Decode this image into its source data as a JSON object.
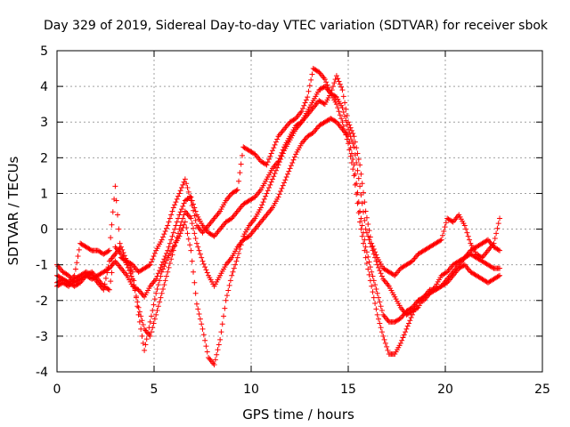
{
  "chart_data": {
    "type": "scatter",
    "title": "Day 329 of 2019, Sidereal Day-to-day VTEC variation (SDTVAR) for receiver sbok",
    "xlabel": "GPS time / hours",
    "ylabel": "SDTVAR / TECUs",
    "xlim": [
      0,
      25
    ],
    "ylim": [
      -4,
      5
    ],
    "xticks": [
      0,
      5,
      10,
      15,
      20,
      25
    ],
    "yticks": [
      -4,
      -3,
      -2,
      -1,
      0,
      1,
      2,
      3,
      4,
      5
    ],
    "grid": true,
    "marker": "+",
    "color": "#ff0000",
    "series": [
      {
        "x": [
          0,
          0.3,
          0.6,
          0.9,
          1.2,
          1.5,
          1.8,
          2.1,
          2.4,
          2.7,
          3.0,
          3.3,
          3.6,
          3.9,
          4.2,
          4.5,
          4.8,
          5.1,
          5.4,
          5.7,
          6.0,
          6.3,
          6.6,
          6.9,
          7.2,
          7.5,
          7.8,
          8.1,
          8.4,
          8.7,
          9.0,
          9.3,
          9.6,
          9.9,
          10.2,
          10.5,
          10.8,
          11.1,
          11.4,
          11.7,
          12.0,
          12.3,
          12.6,
          12.9,
          13.2,
          13.5,
          13.8,
          14.1,
          14.4,
          14.7,
          15.0,
          15.3,
          15.6,
          15.9,
          16.2,
          16.5,
          16.8,
          17.1,
          17.4,
          17.7,
          18.0,
          18.3,
          18.6,
          18.9,
          19.2,
          19.5,
          19.8,
          20.1,
          20.4,
          20.7,
          21.0,
          21.3,
          21.6,
          21.9,
          22.2,
          22.5,
          22.8
        ],
        "y": [
          -1.0,
          -1.2,
          -1.3,
          -1.5,
          -1.4,
          -1.3,
          -1.4,
          -1.3,
          -1.2,
          -1.1,
          -0.9,
          -1.1,
          -1.3,
          -1.6,
          -1.7,
          -1.9,
          -1.6,
          -1.4,
          -1.0,
          -0.6,
          -0.1,
          0.4,
          0.8,
          0.9,
          0.4,
          0.1,
          -0.1,
          -0.2,
          0.0,
          0.2,
          0.3,
          0.5,
          0.7,
          0.8,
          0.9,
          1.1,
          1.4,
          1.7,
          1.9,
          2.3,
          2.6,
          2.9,
          3.0,
          3.2,
          3.4,
          3.6,
          3.5,
          3.8,
          3.7,
          3.4,
          2.8,
          2.3,
          1.2,
          0.0,
          -0.5,
          -1.0,
          -1.4,
          -1.6,
          -1.9,
          -2.2,
          -2.4,
          -2.3,
          -2.2,
          -1.9,
          -1.8,
          -1.7,
          -1.6,
          -1.4,
          -1.2,
          -1.0,
          -0.8,
          -0.6,
          -0.5,
          -0.4,
          -0.3,
          -0.5,
          -0.6
        ]
      },
      {
        "x": [
          0,
          0.3,
          0.6,
          0.9,
          1.2,
          1.5,
          1.8,
          2.1,
          2.4,
          2.7,
          3.0,
          3.3,
          3.6,
          3.9,
          4.2,
          4.5,
          4.8,
          5.1,
          5.4,
          5.7,
          6.0,
          6.3,
          6.6,
          6.9,
          7.2,
          7.5,
          7.8,
          8.1,
          8.4,
          8.7,
          9.0,
          9.3,
          9.6,
          9.9,
          10.2,
          10.5,
          10.8,
          11.1,
          11.4,
          11.7,
          12.0,
          12.3,
          12.6,
          12.9,
          13.2,
          13.5,
          13.8,
          14.1,
          14.4,
          14.7,
          15.0,
          15.3,
          15.6,
          15.9,
          16.2,
          16.5,
          16.8,
          17.1,
          17.4,
          17.7,
          18.0,
          18.3,
          18.6,
          18.9,
          19.2,
          19.5,
          19.8,
          20.1,
          20.4,
          20.7,
          21.0,
          21.3,
          21.6,
          21.9,
          22.2,
          22.5,
          22.8
        ],
        "y": [
          -1.5,
          -1.4,
          -1.5,
          -1.6,
          -1.5,
          -1.3,
          -1.2,
          -1.4,
          -1.6,
          -1.7,
          -0.5,
          -0.7,
          -1.0,
          -1.4,
          -2.2,
          -2.8,
          -3.0,
          -2.4,
          -1.8,
          -1.2,
          -0.6,
          0.0,
          0.5,
          0.3,
          -0.4,
          -0.9,
          -1.3,
          -1.6,
          -1.3,
          -1.0,
          -0.8,
          -0.5,
          -0.3,
          -0.2,
          0.0,
          0.2,
          0.4,
          0.6,
          0.9,
          1.3,
          1.7,
          2.1,
          2.4,
          2.6,
          2.7,
          2.9,
          3.0,
          3.1,
          3.0,
          2.8,
          2.6,
          1.8,
          0.5,
          -0.5,
          -1.2,
          -1.8,
          -2.4,
          -2.6,
          -2.6,
          -2.5,
          -2.3,
          -2.2,
          -2.0,
          -2.0,
          -1.8,
          -1.6,
          -1.3,
          -1.2,
          -1.0,
          -0.9,
          -0.8,
          -0.7,
          -0.8,
          -0.9,
          -1.0,
          -1.1,
          -1.1
        ]
      },
      {
        "x": [
          0,
          0.3,
          0.6,
          0.9,
          1.2,
          1.5,
          1.8,
          2.1,
          2.4,
          2.7,
          3.0,
          3.3,
          3.6,
          3.9,
          4.2,
          4.5,
          4.8,
          5.1,
          5.4,
          5.7,
          6.0,
          6.3,
          6.6,
          6.9,
          7.2,
          7.5,
          7.8,
          8.1,
          8.4,
          8.7,
          9.0,
          9.3,
          9.6,
          9.9,
          10.2,
          10.5,
          10.8,
          11.1,
          11.4,
          11.7,
          12.0,
          12.3,
          12.6,
          12.9,
          13.2,
          13.5,
          13.8,
          14.1,
          14.4,
          14.7,
          15.0,
          15.3,
          15.6,
          15.9,
          16.2,
          16.5,
          16.8,
          17.1,
          17.4,
          17.7,
          18.0,
          18.3,
          18.6,
          18.9,
          19.2,
          19.5,
          19.8,
          20.1,
          20.4,
          20.7,
          21.0,
          21.3,
          21.6,
          21.9,
          22.2,
          22.5,
          22.8
        ],
        "y": [
          -1.6,
          -1.5,
          -1.6,
          -1.4,
          -1.3,
          -1.2,
          -1.3,
          -1.5,
          -1.7,
          -0.9,
          -0.7,
          -0.5,
          -0.9,
          -1.2,
          -2.4,
          -3.4,
          -2.6,
          -1.8,
          -1.2,
          -0.8,
          -0.5,
          -0.2,
          0.2,
          -0.6,
          -2.1,
          -2.8,
          -3.6,
          -3.8,
          -3.1,
          -2.0,
          -1.3,
          -0.8,
          -0.2,
          0.1,
          0.3,
          0.6,
          1.0,
          1.4,
          1.8,
          2.2,
          2.5,
          2.8,
          3.0,
          3.3,
          3.6,
          3.9,
          4.0,
          3.8,
          3.5,
          3.0,
          2.4,
          1.5,
          0.2,
          -0.8,
          -1.6,
          -2.4,
          -3.0,
          -3.5,
          -3.5,
          -3.2,
          -2.8,
          -2.4,
          -2.0,
          -1.9,
          -1.7,
          -1.7,
          -1.6,
          -1.5,
          -1.3,
          -1.1,
          -1.0,
          -1.2,
          -1.3,
          -1.4,
          -1.5,
          -1.4,
          -1.3
        ]
      },
      {
        "x": [
          0,
          0.3,
          0.6,
          0.9,
          1.2,
          1.5,
          1.8,
          2.1,
          2.4,
          2.7,
          3.0,
          3.3,
          3.6,
          3.9,
          4.2,
          4.5,
          4.8,
          5.1,
          5.4,
          5.7,
          6.0,
          6.3,
          6.6,
          6.9,
          7.2,
          7.5,
          7.8,
          8.1,
          8.4,
          8.7,
          9.0,
          9.3,
          9.6,
          9.9,
          10.2,
          10.5,
          10.8,
          11.1,
          11.4,
          11.7,
          12.0,
          12.3,
          12.6,
          12.9,
          13.2,
          13.5,
          13.8,
          14.1,
          14.4,
          14.7,
          15.0,
          15.3,
          15.6,
          15.9,
          16.2,
          16.5,
          16.8,
          17.1,
          17.4,
          17.7,
          18.0,
          18.3,
          18.6,
          18.9,
          19.2,
          19.5,
          19.8,
          20.1,
          20.4,
          20.7,
          21.0,
          21.3,
          21.6,
          21.9,
          22.2,
          22.5,
          22.8
        ],
        "y": [
          -1.3,
          -1.4,
          -1.5,
          -1.3,
          -0.4,
          -0.5,
          -0.6,
          -0.6,
          -0.7,
          -0.6,
          1.2,
          -0.8,
          -0.9,
          -1.0,
          -1.2,
          -1.1,
          -1.0,
          -0.6,
          -0.3,
          0.1,
          0.6,
          1.0,
          1.4,
          0.8,
          0.1,
          -0.1,
          0.1,
          0.3,
          0.5,
          0.8,
          1.0,
          1.1,
          2.3,
          2.2,
          2.1,
          1.9,
          1.8,
          2.2,
          2.6,
          2.8,
          3.0,
          3.1,
          3.3,
          3.7,
          4.5,
          4.4,
          4.2,
          3.8,
          4.3,
          3.9,
          3.0,
          2.6,
          1.8,
          0.5,
          -0.4,
          -0.8,
          -1.1,
          -1.2,
          -1.3,
          -1.1,
          -1.0,
          -0.9,
          -0.7,
          -0.6,
          -0.5,
          -0.4,
          -0.3,
          0.3,
          0.2,
          0.4,
          0.1,
          -0.4,
          -0.7,
          -0.8,
          -0.6,
          -0.4,
          0.3
        ]
      }
    ]
  }
}
